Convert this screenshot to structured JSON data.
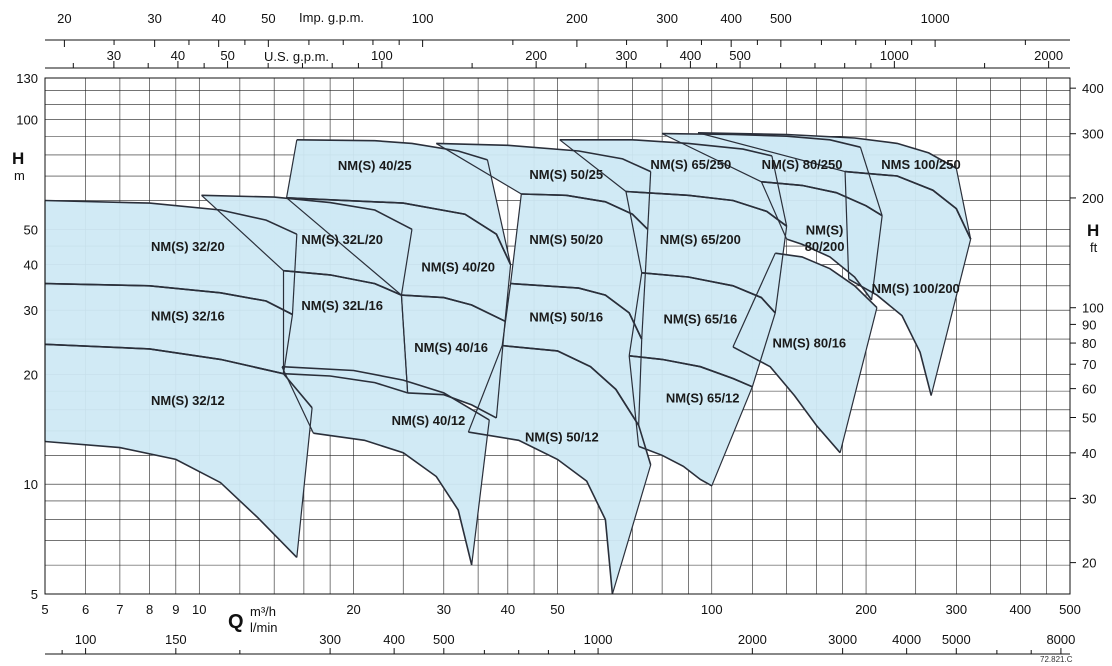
{
  "chart_data": {
    "type": "area",
    "x_scale": "log",
    "y_scale": "log",
    "xlim": [
      5,
      500
    ],
    "ylim": [
      5,
      130
    ],
    "grid": true,
    "x_axis": {
      "unit_symbol": "Q",
      "unit_primary": "m³/h",
      "unit_secondary": "l/min",
      "ticks": [
        5,
        6,
        7,
        8,
        9,
        10,
        20,
        30,
        40,
        50,
        100,
        200,
        300,
        400,
        500
      ],
      "gridlines": [
        5,
        6,
        7,
        8,
        9,
        10,
        12,
        14,
        16,
        18,
        20,
        25,
        30,
        35,
        40,
        45,
        50,
        60,
        70,
        80,
        90,
        100,
        120,
        140,
        160,
        180,
        200,
        250,
        300,
        350,
        400,
        450,
        500
      ],
      "lmin_ticks": [
        100,
        150,
        300,
        400,
        500,
        1000,
        2000,
        3000,
        4000,
        5000,
        8000
      ]
    },
    "top_axis_imp": {
      "label": "Imp. g.p.m.",
      "ticks": [
        20,
        30,
        40,
        50,
        100,
        200,
        300,
        400,
        500,
        1000
      ]
    },
    "top_axis_us": {
      "label": "U.S. g.p.m.",
      "ticks": [
        30,
        40,
        50,
        100,
        200,
        300,
        400,
        500,
        1000,
        2000
      ]
    },
    "y_axis": {
      "unit_symbol": "H",
      "unit": "m",
      "ticks": [
        5,
        10,
        20,
        30,
        40,
        50,
        100,
        130
      ],
      "gridlines": [
        5,
        6,
        7,
        8,
        9,
        10,
        12,
        14,
        16,
        18,
        20,
        25,
        30,
        35,
        40,
        45,
        50,
        60,
        70,
        80,
        90,
        100,
        110,
        120,
        130
      ]
    },
    "y_axis_right": {
      "unit_symbol": "H",
      "unit": "ft",
      "ticks": [
        20,
        30,
        40,
        50,
        60,
        70,
        80,
        90,
        100,
        200,
        300,
        400
      ]
    },
    "regions": [
      {
        "label": "NM(S) 32/12",
        "lx": 9.5,
        "ly": 17.0,
        "top": [
          [
            5,
            24.2
          ],
          [
            8,
            23.5
          ],
          [
            11,
            22.0
          ],
          [
            14.6,
            20.1
          ],
          [
            16.6,
            16.2
          ]
        ],
        "bottom": [
          [
            5,
            13.1
          ],
          [
            7,
            12.6
          ],
          [
            9,
            11.7
          ],
          [
            11,
            10.1
          ],
          [
            13,
            8.1
          ],
          [
            15.5,
            6.3
          ]
        ]
      },
      {
        "label": "NM(S) 32/16",
        "lx": 9.5,
        "ly": 29.0,
        "top": [
          [
            5,
            35.5
          ],
          [
            8,
            35.0
          ],
          [
            11,
            33.5
          ],
          [
            13.5,
            31.8
          ],
          [
            15.2,
            29.2
          ]
        ],
        "bottom": [
          [
            5,
            24.2
          ],
          [
            8,
            23.5
          ],
          [
            11,
            22.0
          ],
          [
            14.6,
            20.1
          ]
        ]
      },
      {
        "label": "NM(S) 32/20",
        "lx": 9.5,
        "ly": 45.0,
        "top": [
          [
            5,
            60.0
          ],
          [
            8,
            59.0
          ],
          [
            11,
            56.5
          ],
          [
            13.5,
            53.0
          ],
          [
            15.5,
            48.5
          ]
        ],
        "bottom": [
          [
            5,
            35.5
          ],
          [
            8,
            35.0
          ],
          [
            11,
            33.5
          ],
          [
            13.5,
            31.8
          ],
          [
            15.2,
            29.2
          ]
        ]
      },
      {
        "label": "NM(S) 32L/20",
        "lx": 19.0,
        "ly": 47.0,
        "top": [
          [
            10.1,
            62.0
          ],
          [
            14,
            61.3
          ],
          [
            18,
            59.2
          ],
          [
            22,
            56.5
          ],
          [
            26,
            50.0
          ]
        ],
        "bottom": [
          [
            14.6,
            38.5
          ],
          [
            18,
            37.5
          ],
          [
            22,
            35.5
          ],
          [
            24.8,
            33.0
          ]
        ]
      },
      {
        "label": "NM(S) 32L/16",
        "lx": 19.0,
        "ly": 31.0,
        "top": [
          [
            14.6,
            38.5
          ],
          [
            18,
            37.5
          ],
          [
            22,
            35.5
          ],
          [
            24.8,
            33.0
          ]
        ],
        "bottom": [
          [
            14.6,
            20.1
          ],
          [
            18,
            19.8
          ],
          [
            22,
            19.0
          ],
          [
            25.5,
            17.8
          ]
        ]
      },
      {
        "label": "NM(S) 40/12",
        "lx": 28.0,
        "ly": 15.0,
        "top": [
          [
            14.5,
            21.0
          ],
          [
            20,
            20.5
          ],
          [
            25,
            19.3
          ],
          [
            30,
            17.8
          ],
          [
            36.8,
            15.0
          ]
        ],
        "bottom": [
          [
            16.7,
            13.8
          ],
          [
            21,
            13.2
          ],
          [
            25,
            12.2
          ],
          [
            29,
            10.5
          ],
          [
            32,
            8.5
          ],
          [
            34.0,
            6.0
          ]
        ]
      },
      {
        "label": "NM(S) 40/16",
        "lx": 31.0,
        "ly": 23.8,
        "top": [
          [
            24.8,
            33.0
          ],
          [
            30,
            32.5
          ],
          [
            34,
            31.0
          ],
          [
            39.5,
            28.0
          ]
        ],
        "bottom": [
          [
            25.5,
            17.8
          ],
          [
            30,
            17.6
          ],
          [
            34,
            16.5
          ],
          [
            38,
            15.2
          ]
        ]
      },
      {
        "label": "NM(S) 40/20",
        "lx": 32.0,
        "ly": 39.5,
        "top": [
          [
            14.8,
            61.0
          ],
          [
            25,
            59.0
          ],
          [
            33,
            55.0
          ],
          [
            38,
            48.5
          ],
          [
            40.5,
            40.0
          ]
        ],
        "bottom": [
          [
            24.8,
            33.0
          ],
          [
            30,
            32.5
          ],
          [
            34,
            31.0
          ],
          [
            39.5,
            28.0
          ]
        ]
      },
      {
        "label": "NM(S) 40/25",
        "lx": 22.0,
        "ly": 75.0,
        "top": [
          [
            15.5,
            88.0
          ],
          [
            22,
            87.5
          ],
          [
            26,
            86.0
          ],
          [
            32,
            82.0
          ],
          [
            36.5,
            77.5
          ]
        ],
        "bottom": [
          [
            14.8,
            61.0
          ],
          [
            25,
            59.0
          ],
          [
            33,
            55.0
          ],
          [
            38,
            48.5
          ],
          [
            40.5,
            40.0
          ]
        ]
      },
      {
        "label": "NM(S) 50/25",
        "lx": 52.0,
        "ly": 71.0,
        "top": [
          [
            29,
            86.0
          ],
          [
            40,
            85.0
          ],
          [
            55,
            82.0
          ],
          [
            67,
            78.0
          ],
          [
            76,
            72.0
          ]
        ],
        "bottom": [
          [
            42.5,
            62.5
          ],
          [
            52,
            62.0
          ],
          [
            62,
            59.5
          ],
          [
            70,
            55.0
          ],
          [
            75,
            50.0
          ]
        ]
      },
      {
        "label": "NM(S) 50/20",
        "lx": 52.0,
        "ly": 47.0,
        "top": [
          [
            42.5,
            62.5
          ],
          [
            52,
            62.0
          ],
          [
            62,
            59.5
          ],
          [
            70,
            55.0
          ],
          [
            75,
            50.0
          ]
        ],
        "bottom": [
          [
            40.5,
            35.5
          ],
          [
            55,
            34.5
          ],
          [
            62,
            33.0
          ],
          [
            69,
            29.5
          ],
          [
            73,
            25.0
          ]
        ]
      },
      {
        "label": "NM(S) 50/16",
        "lx": 52.0,
        "ly": 28.8,
        "top": [
          [
            40.5,
            35.5
          ],
          [
            55,
            34.5
          ],
          [
            62,
            33.0
          ],
          [
            69,
            29.5
          ],
          [
            73,
            25.0
          ]
        ],
        "bottom": [
          [
            39,
            24.0
          ],
          [
            50,
            23.2
          ],
          [
            58,
            21.0
          ],
          [
            65,
            18.2
          ],
          [
            72,
            14.5
          ]
        ]
      },
      {
        "label": "NM(S) 50/12",
        "lx": 51.0,
        "ly": 13.5,
        "top": [
          [
            39,
            24.0
          ],
          [
            50,
            23.2
          ],
          [
            58,
            21.0
          ],
          [
            65,
            18.2
          ],
          [
            72,
            14.5
          ],
          [
            76,
            11.3
          ]
        ],
        "bottom": [
          [
            33.5,
            13.9
          ],
          [
            42,
            13.2
          ],
          [
            50,
            11.7
          ],
          [
            57,
            10.2
          ],
          [
            62,
            8.0
          ],
          [
            64,
            5.0
          ]
        ]
      },
      {
        "label": "NM(S) 65/250",
        "lx": 91.0,
        "ly": 75.5,
        "top": [
          [
            50.5,
            88.0
          ],
          [
            70,
            88.0
          ],
          [
            90,
            86.0
          ],
          [
            115,
            83.0
          ],
          [
            131,
            79.5
          ]
        ],
        "bottom": [
          [
            68,
            63.5
          ],
          [
            90,
            62.0
          ],
          [
            110,
            60.0
          ],
          [
            128,
            56.0
          ],
          [
            140,
            51.0
          ]
        ]
      },
      {
        "label": "NM(S) 65/200",
        "lx": 95.0,
        "ly": 47.0,
        "top": [
          [
            68,
            63.5
          ],
          [
            90,
            62.0
          ],
          [
            110,
            60.0
          ],
          [
            128,
            56.0
          ],
          [
            140,
            51.0
          ]
        ],
        "bottom": [
          [
            73,
            38.0
          ],
          [
            90,
            37.0
          ],
          [
            110,
            35.0
          ],
          [
            125,
            32.5
          ],
          [
            133,
            29.5
          ]
        ]
      },
      {
        "label": "NM(S) 65/16",
        "lx": 95.0,
        "ly": 28.5,
        "top": [
          [
            73,
            38.0
          ],
          [
            90,
            37.0
          ],
          [
            110,
            35.0
          ],
          [
            125,
            32.5
          ],
          [
            133,
            29.5
          ]
        ],
        "bottom": [
          [
            69,
            22.5
          ],
          [
            80,
            22.0
          ],
          [
            95,
            21.0
          ],
          [
            110,
            19.5
          ],
          [
            120,
            18.5
          ]
        ]
      },
      {
        "label": "NM(S) 65/12",
        "lx": 96.0,
        "ly": 17.3,
        "top": [
          [
            69,
            22.5
          ],
          [
            80,
            22.0
          ],
          [
            95,
            21.0
          ],
          [
            110,
            19.5
          ],
          [
            120,
            18.5
          ]
        ],
        "bottom": [
          [
            72,
            12.7
          ],
          [
            80,
            12.0
          ],
          [
            88,
            11.2
          ],
          [
            95,
            10.3
          ],
          [
            100,
            9.9
          ]
        ]
      },
      {
        "label": "NM(S) 80/250",
        "lx": 150.0,
        "ly": 75.5,
        "top": [
          [
            80,
            91.5
          ],
          [
            110,
            91.0
          ],
          [
            140,
            90.0
          ],
          [
            170,
            88.0
          ],
          [
            195,
            84.0
          ]
        ],
        "bottom": [
          [
            125,
            67.5
          ],
          [
            150,
            66.0
          ],
          [
            175,
            63.0
          ],
          [
            200,
            58.0
          ],
          [
            215,
            54.5
          ]
        ]
      },
      {
        "label": "NM(S)",
        "lx": 166.0,
        "ly": 50.0,
        "top": [
          [
            125,
            67.5
          ],
          [
            150,
            66.0
          ],
          [
            175,
            63.0
          ],
          [
            200,
            58.0
          ],
          [
            215,
            54.5
          ]
        ],
        "bottom": [
          [
            140,
            47.0
          ],
          [
            150,
            45.5
          ],
          [
            170,
            42.0
          ],
          [
            190,
            37.0
          ],
          [
            205,
            32.0
          ]
        ]
      },
      {
        "label": "80/200",
        "lx": 166.0,
        "ly": 45.0
      },
      {
        "label": "NM(S) 80/16",
        "lx": 155.0,
        "ly": 24.5,
        "top": [
          [
            133,
            43.0
          ],
          [
            150,
            42.0
          ],
          [
            170,
            39.0
          ],
          [
            190,
            35.0
          ],
          [
            210,
            30.5
          ]
        ],
        "bottom": [
          [
            110,
            23.8
          ],
          [
            130,
            21.0
          ],
          [
            145,
            17.5
          ],
          [
            160,
            14.5
          ],
          [
            178,
            12.2
          ]
        ]
      },
      {
        "label": "NMS 100/250",
        "lx": 256.0,
        "ly": 75.5,
        "top": [
          [
            94,
            92.0
          ],
          [
            140,
            91.0
          ],
          [
            190,
            89.0
          ],
          [
            230,
            86.0
          ],
          [
            265,
            81.0
          ],
          [
            300,
            73.5
          ]
        ],
        "bottom": [
          [
            182,
            72.0
          ],
          [
            230,
            70.0
          ],
          [
            270,
            64.0
          ],
          [
            300,
            57.0
          ],
          [
            320,
            47.0
          ]
        ]
      },
      {
        "label": "NM(S) 100/200",
        "lx": 250.0,
        "ly": 34.5,
        "top": [
          [
            182,
            72.0
          ],
          [
            230,
            70.0
          ],
          [
            270,
            64.0
          ],
          [
            300,
            57.0
          ],
          [
            320,
            47.0
          ]
        ],
        "bottom": [
          [
            185,
            36.5
          ],
          [
            210,
            33.0
          ],
          [
            235,
            29.0
          ],
          [
            255,
            23.0
          ],
          [
            268,
            17.5
          ]
        ]
      }
    ],
    "figure_ref": "72.821.C"
  }
}
